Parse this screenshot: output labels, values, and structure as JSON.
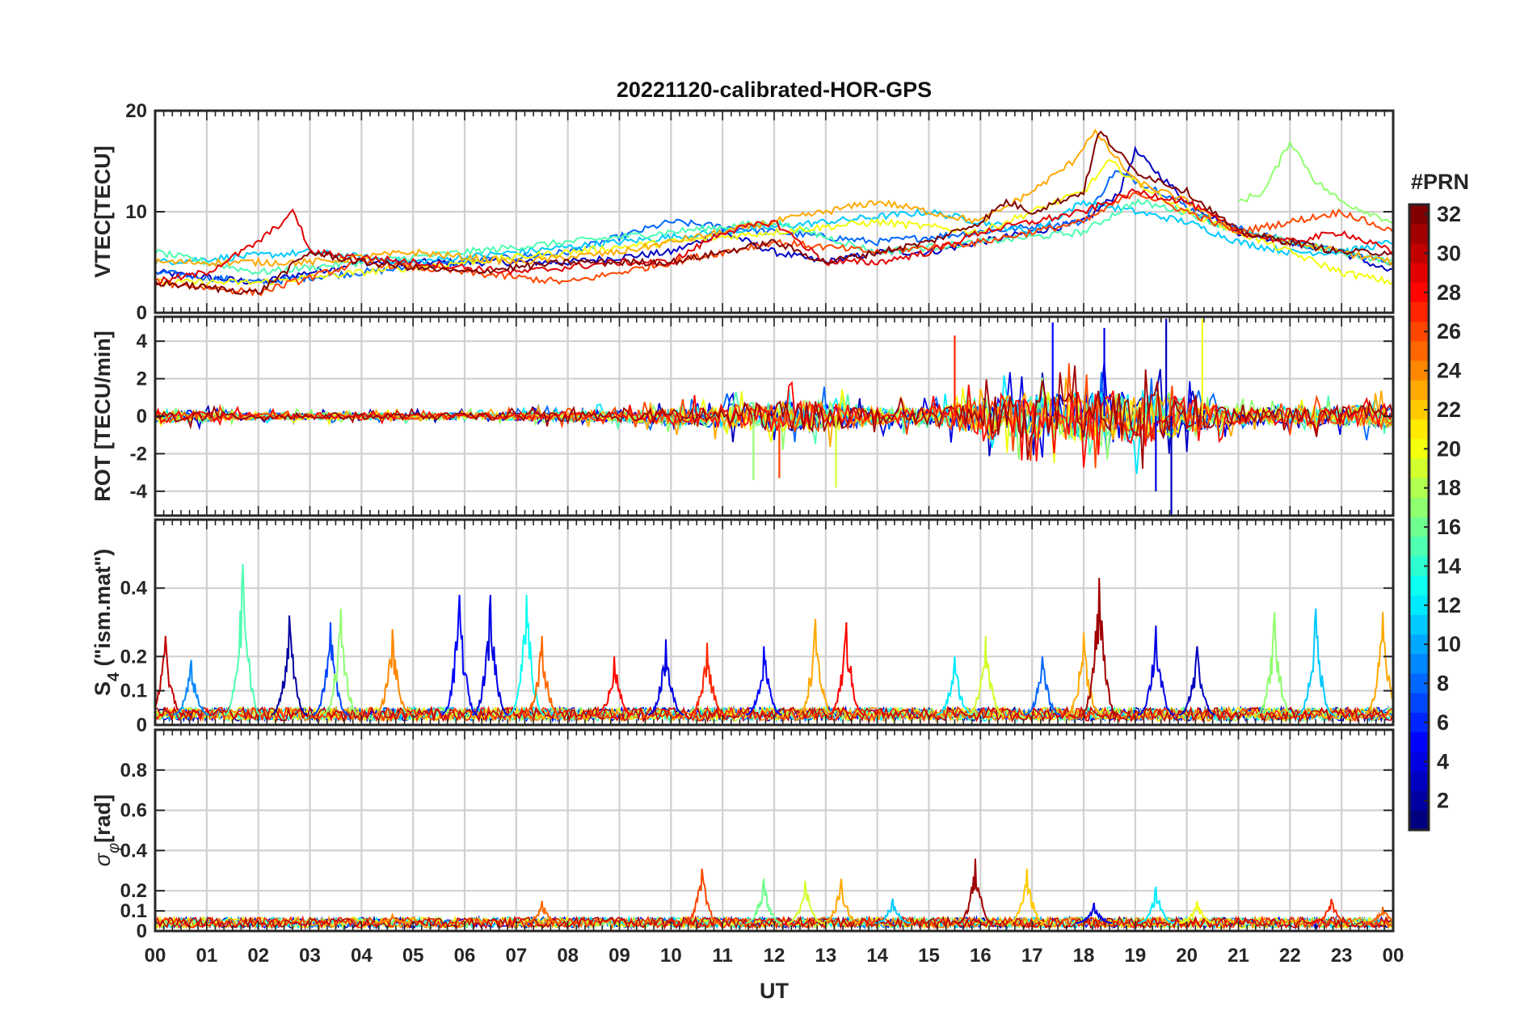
{
  "chart_data": {
    "type": "line",
    "title": "20221120-calibrated-HOR-GPS",
    "xlabel": "UT",
    "x_ticks": [
      "00",
      "01",
      "02",
      "03",
      "04",
      "05",
      "06",
      "07",
      "08",
      "09",
      "10",
      "11",
      "12",
      "13",
      "14",
      "15",
      "16",
      "17",
      "18",
      "19",
      "20",
      "21",
      "22",
      "23",
      "00"
    ],
    "xlim": [
      0,
      24
    ],
    "colorbar": {
      "label": "#PRN",
      "range": [
        1,
        32
      ],
      "ticks": [
        "2",
        "4",
        "6",
        "8",
        "10",
        "12",
        "14",
        "16",
        "18",
        "20",
        "22",
        "24",
        "26",
        "28",
        "30",
        "32"
      ],
      "colormap": "jet"
    },
    "panels": [
      {
        "id": "vtec",
        "ylabel": "VTEC[TECU]",
        "ylim": [
          0,
          20
        ],
        "y_ticks": [
          0,
          10,
          20
        ],
        "y_tick_labels": [
          "0",
          "10",
          "20"
        ],
        "series": [
          {
            "name": "PRN 3",
            "prn": 3,
            "x": [
              0,
              2,
              4,
              6,
              8,
              10,
              11,
              12,
              13,
              14,
              15,
              16,
              17,
              18,
              18.7,
              19,
              20,
              21,
              22,
              23,
              24
            ],
            "y": [
              4,
              3,
              5,
              5,
              5,
              6,
              8,
              6,
              5,
              6,
              6,
              7,
              8,
              9,
              12,
              16,
              11,
              8,
              7,
              6,
              4
            ]
          },
          {
            "name": "PRN 8",
            "prn": 8,
            "x": [
              0,
              2,
              4,
              6,
              8,
              10,
              12,
              14,
              16,
              18,
              18.6,
              19.5,
              20.5,
              22,
              23,
              24
            ],
            "y": [
              4,
              3,
              4,
              5,
              6,
              9,
              8,
              7,
              8,
              9,
              14,
              12,
              9,
              7,
              6,
              5
            ]
          },
          {
            "name": "PRN 11",
            "prn": 11,
            "x": [
              0,
              3,
              5,
              7,
              9,
              11,
              13,
              15,
              16,
              17,
              18,
              19,
              20,
              21,
              22,
              23,
              24
            ],
            "y": [
              5,
              6,
              5,
              6,
              7,
              8,
              9,
              10,
              9,
              8,
              11,
              10,
              9,
              7,
              6,
              6,
              7
            ]
          },
          {
            "name": "PRN 15",
            "prn": 15,
            "x": [
              0,
              2,
              4,
              6,
              8,
              10,
              12,
              14,
              16,
              18,
              19,
              20,
              21,
              22,
              23,
              24
            ],
            "y": [
              6,
              4,
              5,
              6,
              7,
              8,
              9,
              6,
              7,
              8,
              11,
              10,
              8,
              7,
              6,
              5
            ]
          },
          {
            "name": "PRN 17",
            "prn": 17,
            "x": [
              21,
              21.5,
              22,
              22.5,
              23,
              24
            ],
            "y": [
              11,
              12,
              17,
              13,
              11,
              9
            ]
          },
          {
            "name": "PRN 20",
            "prn": 20,
            "x": [
              0,
              2,
              4,
              6,
              8,
              10,
              12,
              14,
              16,
              17,
              18,
              18.5,
              19,
              20,
              21,
              22,
              23,
              24
            ],
            "y": [
              3,
              3,
              4,
              5,
              6,
              7,
              8,
              9,
              8,
              10,
              12,
              15,
              13,
              10,
              8,
              6,
              4,
              3
            ]
          },
          {
            "name": "PRN 23",
            "prn": 23,
            "x": [
              0,
              3,
              5,
              7,
              9,
              11,
              12,
              13,
              14,
              15,
              16,
              17,
              17.8,
              18.2,
              19,
              20,
              21,
              22,
              23,
              24
            ],
            "y": [
              5,
              5,
              6,
              5,
              6,
              8,
              9,
              10,
              11,
              10,
              9,
              12,
              15,
              18,
              13,
              11,
              8,
              7,
              6,
              5
            ]
          },
          {
            "name": "PRN 26",
            "prn": 26,
            "x": [
              0,
              2,
              4,
              6,
              8,
              10,
              12,
              14,
              16,
              18,
              19,
              20,
              21,
              22,
              23,
              24
            ],
            "y": [
              3,
              2,
              5,
              4,
              3,
              5,
              7,
              6,
              7,
              9,
              12,
              10,
              8,
              9,
              10,
              8
            ]
          },
          {
            "name": "PRN 29",
            "prn": 29,
            "x": [
              0,
              1,
              2,
              2.7,
              3,
              5,
              7,
              9,
              10,
              11,
              12,
              13,
              14,
              15,
              16,
              17,
              18,
              19,
              20,
              21,
              22,
              23,
              24
            ],
            "y": [
              3,
              4,
              7,
              10,
              6,
              5,
              4,
              5,
              5,
              8,
              9,
              5,
              5,
              6,
              8,
              9,
              10,
              12,
              11,
              8,
              7,
              8,
              6
            ]
          },
          {
            "name": "PRN 32",
            "prn": 32,
            "x": [
              0,
              2,
              3,
              4,
              6,
              8,
              10,
              12,
              13,
              14,
              15,
              16,
              16.5,
              17,
              18,
              18.3,
              19,
              19.5,
              20,
              21,
              22,
              23,
              24
            ],
            "y": [
              3,
              2,
              6,
              5,
              4,
              5,
              5,
              7,
              5,
              6,
              7,
              9,
              11,
              10,
              12,
              18,
              14,
              13,
              12,
              8,
              7,
              6,
              6
            ]
          }
        ]
      },
      {
        "id": "rot",
        "ylabel": "ROT [TECU/min]",
        "ylim": [
          -5.3,
          5.3
        ],
        "y_ticks": [
          -4,
          -2,
          0,
          2,
          4
        ],
        "y_tick_labels": [
          "-4",
          "-2",
          "0",
          "2",
          "4"
        ],
        "envelope": {
          "x": [
            0,
            2,
            4,
            6,
            8,
            9,
            10,
            11,
            12,
            13,
            14,
            15,
            16,
            17,
            18,
            19,
            19.7,
            20,
            21,
            22,
            23,
            24
          ],
          "amplitude": [
            0.8,
            0.4,
            0.4,
            0.4,
            0.6,
            0.7,
            1.0,
            1.4,
            1.8,
            1.8,
            1.0,
            1.0,
            2.2,
            2.5,
            3.0,
            3.2,
            3.0,
            2.0,
            1.0,
            1.0,
            1.2,
            1.5
          ]
        },
        "spikes": [
          {
            "x": 15.5,
            "y": 4.3,
            "prn": 27
          },
          {
            "x": 17.4,
            "y": 5.0,
            "prn": 5
          },
          {
            "x": 18.4,
            "y": 4.7,
            "prn": 4
          },
          {
            "x": 19.6,
            "y": 5.2,
            "prn": 3
          },
          {
            "x": 20.3,
            "y": 5.2,
            "prn": 20
          },
          {
            "x": 19.7,
            "y": -5.3,
            "prn": 3
          },
          {
            "x": 19.4,
            "y": -4.0,
            "prn": 4
          },
          {
            "x": 12.1,
            "y": -3.3,
            "prn": 26
          },
          {
            "x": 11.6,
            "y": -3.4,
            "prn": 17
          },
          {
            "x": 13.2,
            "y": -3.8,
            "prn": 19
          }
        ]
      },
      {
        "id": "s4",
        "ylabel": "S4 (\"ism.mat\")",
        "ylim": [
          0,
          0.6
        ],
        "y_ticks": [
          0,
          0.1,
          0.2,
          0.4
        ],
        "y_tick_labels": [
          "0",
          "0.1",
          "0.2",
          "0.4"
        ],
        "baseline": 0.03,
        "peaks": [
          {
            "x": 0.2,
            "y": 0.26,
            "prn": 30
          },
          {
            "x": 0.7,
            "y": 0.19,
            "prn": 9
          },
          {
            "x": 1.7,
            "y": 0.47,
            "prn": 15
          },
          {
            "x": 2.6,
            "y": 0.32,
            "prn": 2
          },
          {
            "x": 3.4,
            "y": 0.3,
            "prn": 7
          },
          {
            "x": 3.6,
            "y": 0.34,
            "prn": 17
          },
          {
            "x": 4.6,
            "y": 0.28,
            "prn": 24
          },
          {
            "x": 5.9,
            "y": 0.38,
            "prn": 5
          },
          {
            "x": 6.5,
            "y": 0.38,
            "prn": 4
          },
          {
            "x": 7.2,
            "y": 0.38,
            "prn": 13
          },
          {
            "x": 7.5,
            "y": 0.26,
            "prn": 25
          },
          {
            "x": 8.9,
            "y": 0.2,
            "prn": 28
          },
          {
            "x": 9.9,
            "y": 0.25,
            "prn": 4
          },
          {
            "x": 10.7,
            "y": 0.24,
            "prn": 27
          },
          {
            "x": 11.8,
            "y": 0.23,
            "prn": 5
          },
          {
            "x": 12.8,
            "y": 0.31,
            "prn": 23
          },
          {
            "x": 13.4,
            "y": 0.3,
            "prn": 28
          },
          {
            "x": 15.5,
            "y": 0.2,
            "prn": 12
          },
          {
            "x": 16.1,
            "y": 0.26,
            "prn": 19
          },
          {
            "x": 17.2,
            "y": 0.2,
            "prn": 8
          },
          {
            "x": 18.0,
            "y": 0.27,
            "prn": 23
          },
          {
            "x": 18.3,
            "y": 0.43,
            "prn": 31
          },
          {
            "x": 19.4,
            "y": 0.29,
            "prn": 4
          },
          {
            "x": 20.2,
            "y": 0.23,
            "prn": 3
          },
          {
            "x": 21.7,
            "y": 0.33,
            "prn": 17
          },
          {
            "x": 22.5,
            "y": 0.34,
            "prn": 11
          },
          {
            "x": 23.8,
            "y": 0.33,
            "prn": 23
          }
        ]
      },
      {
        "id": "sigma_phi",
        "ylabel": "σφ[rad]",
        "ylim": [
          0,
          1.0
        ],
        "y_ticks": [
          0,
          0.1,
          0.2,
          0.4,
          0.6,
          0.8
        ],
        "y_tick_labels": [
          "0",
          "0.1",
          "0.2",
          "0.4",
          "0.6",
          "0.8"
        ],
        "baseline": 0.04,
        "peaks": [
          {
            "x": 4.6,
            "y": 0.08,
            "prn": 24
          },
          {
            "x": 7.5,
            "y": 0.15,
            "prn": 25
          },
          {
            "x": 10.6,
            "y": 0.31,
            "prn": 26
          },
          {
            "x": 11.8,
            "y": 0.26,
            "prn": 16
          },
          {
            "x": 12.6,
            "y": 0.25,
            "prn": 19
          },
          {
            "x": 13.3,
            "y": 0.26,
            "prn": 23
          },
          {
            "x": 14.3,
            "y": 0.16,
            "prn": 11
          },
          {
            "x": 15.9,
            "y": 0.36,
            "prn": 31
          },
          {
            "x": 16.9,
            "y": 0.31,
            "prn": 22
          },
          {
            "x": 18.2,
            "y": 0.14,
            "prn": 4
          },
          {
            "x": 19.4,
            "y": 0.22,
            "prn": 12
          },
          {
            "x": 20.2,
            "y": 0.15,
            "prn": 20
          },
          {
            "x": 22.8,
            "y": 0.16,
            "prn": 27
          },
          {
            "x": 23.8,
            "y": 0.12,
            "prn": 25
          }
        ]
      }
    ]
  }
}
